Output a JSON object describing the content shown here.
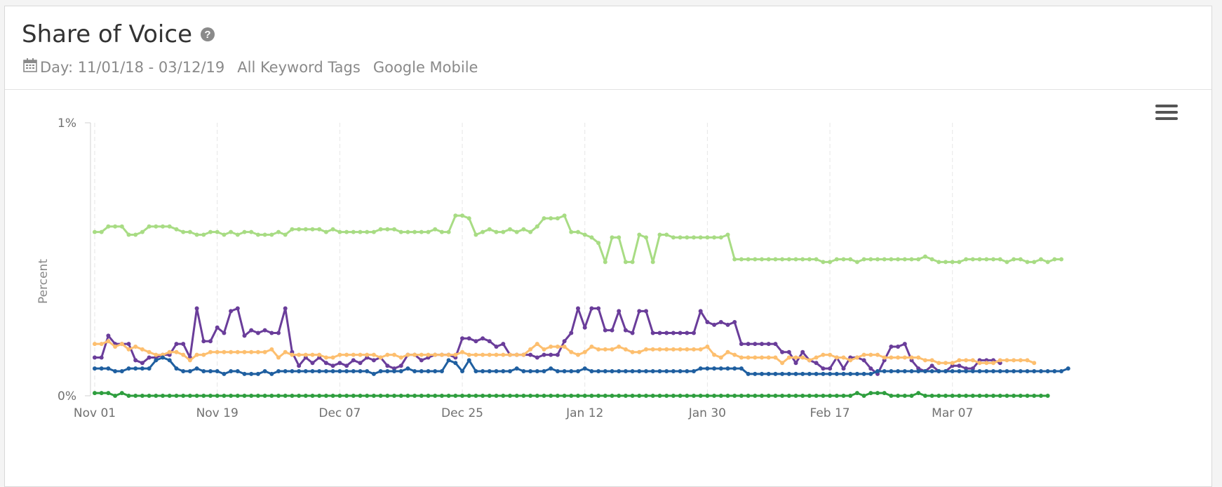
{
  "header": {
    "title": "Share of Voice",
    "help_icon": "question-circle-icon",
    "date_range": "Day: 11/01/18 - 03/12/19",
    "keyword_tags": "All Keyword Tags",
    "engine": "Google Mobile",
    "calendar_icon": "calendar-icon",
    "menu_icon": "hamburger-menu-icon"
  },
  "chart_data": {
    "type": "line",
    "ylabel": "Percent",
    "ylim": [
      0,
      1
    ],
    "y_ticks": [
      "0%",
      "1%"
    ],
    "x_ticks": [
      "Nov 01",
      "Nov 19",
      "Dec 07",
      "Dec 25",
      "Jan 12",
      "Jan 30",
      "Feb 17",
      "Mar 07"
    ],
    "x_start": "2018-11-01",
    "x_end": "2019-03-12",
    "grid": "vertical-dashed",
    "legend": "none",
    "series": [
      {
        "color": "#a8dc84",
        "values": [
          0.6,
          0.6,
          0.62,
          0.62,
          0.62,
          0.59,
          0.59,
          0.6,
          0.62,
          0.62,
          0.62,
          0.62,
          0.61,
          0.6,
          0.6,
          0.59,
          0.59,
          0.6,
          0.6,
          0.59,
          0.6,
          0.59,
          0.6,
          0.6,
          0.59,
          0.59,
          0.59,
          0.6,
          0.59,
          0.61,
          0.61,
          0.61,
          0.61,
          0.61,
          0.6,
          0.61,
          0.6,
          0.6,
          0.6,
          0.6,
          0.6,
          0.6,
          0.61,
          0.61,
          0.61,
          0.6,
          0.6,
          0.6,
          0.6,
          0.6,
          0.61,
          0.6,
          0.6,
          0.66,
          0.66,
          0.65,
          0.59,
          0.6,
          0.61,
          0.6,
          0.6,
          0.61,
          0.6,
          0.61,
          0.6,
          0.62,
          0.65,
          0.65,
          0.65,
          0.66,
          0.6,
          0.6,
          0.59,
          0.58,
          0.56,
          0.49,
          0.58,
          0.58,
          0.49,
          0.49,
          0.59,
          0.58,
          0.49,
          0.59,
          0.59,
          0.58,
          0.58,
          0.58,
          0.58,
          0.58,
          0.58,
          0.58,
          0.58,
          0.59,
          0.5,
          0.5,
          0.5,
          0.5,
          0.5,
          0.5,
          0.5,
          0.5,
          0.5,
          0.5,
          0.5,
          0.5,
          0.5,
          0.49,
          0.49,
          0.5,
          0.5,
          0.5,
          0.49,
          0.5,
          0.5,
          0.5,
          0.5,
          0.5,
          0.5,
          0.5,
          0.5,
          0.5,
          0.51,
          0.5,
          0.49,
          0.49,
          0.49,
          0.49,
          0.5,
          0.5,
          0.5,
          0.5,
          0.5,
          0.5,
          0.49,
          0.5,
          0.5,
          0.49,
          0.49,
          0.5,
          0.49,
          0.5,
          0.5
        ]
      },
      {
        "color": "#6a3d9a",
        "values": [
          0.14,
          0.14,
          0.22,
          0.19,
          0.19,
          0.19,
          0.13,
          0.12,
          0.14,
          0.14,
          0.15,
          0.15,
          0.19,
          0.19,
          0.14,
          0.32,
          0.2,
          0.2,
          0.25,
          0.23,
          0.31,
          0.32,
          0.22,
          0.24,
          0.23,
          0.24,
          0.23,
          0.23,
          0.32,
          0.16,
          0.11,
          0.14,
          0.12,
          0.14,
          0.12,
          0.11,
          0.12,
          0.11,
          0.13,
          0.12,
          0.14,
          0.13,
          0.14,
          0.11,
          0.1,
          0.11,
          0.15,
          0.15,
          0.13,
          0.14,
          0.15,
          0.15,
          0.15,
          0.14,
          0.21,
          0.21,
          0.2,
          0.21,
          0.2,
          0.18,
          0.19,
          0.15,
          0.15,
          0.15,
          0.15,
          0.14,
          0.15,
          0.15,
          0.15,
          0.2,
          0.23,
          0.32,
          0.25,
          0.32,
          0.32,
          0.24,
          0.24,
          0.31,
          0.24,
          0.23,
          0.31,
          0.31,
          0.23,
          0.23,
          0.23,
          0.23,
          0.23,
          0.23,
          0.23,
          0.31,
          0.27,
          0.26,
          0.27,
          0.26,
          0.27,
          0.19,
          0.19,
          0.19,
          0.19,
          0.19,
          0.19,
          0.16,
          0.16,
          0.12,
          0.16,
          0.13,
          0.12,
          0.1,
          0.1,
          0.14,
          0.1,
          0.14,
          0.14,
          0.13,
          0.1,
          0.08,
          0.13,
          0.18,
          0.18,
          0.19,
          0.13,
          0.1,
          0.09,
          0.11,
          0.09,
          0.09,
          0.11,
          0.11,
          0.1,
          0.1,
          0.13,
          0.13,
          0.13,
          0.12
        ]
      },
      {
        "color": "#fdbf6f",
        "values": [
          0.19,
          0.19,
          0.2,
          0.18,
          0.19,
          0.17,
          0.18,
          0.17,
          0.16,
          0.15,
          0.15,
          0.16,
          0.16,
          0.15,
          0.13,
          0.15,
          0.15,
          0.16,
          0.16,
          0.16,
          0.16,
          0.16,
          0.16,
          0.16,
          0.16,
          0.16,
          0.17,
          0.14,
          0.16,
          0.15,
          0.15,
          0.15,
          0.15,
          0.15,
          0.14,
          0.14,
          0.15,
          0.15,
          0.15,
          0.15,
          0.15,
          0.15,
          0.14,
          0.15,
          0.15,
          0.14,
          0.15,
          0.15,
          0.15,
          0.15,
          0.15,
          0.15,
          0.15,
          0.15,
          0.16,
          0.15,
          0.15,
          0.15,
          0.15,
          0.15,
          0.15,
          0.15,
          0.15,
          0.15,
          0.17,
          0.19,
          0.17,
          0.18,
          0.18,
          0.18,
          0.16,
          0.15,
          0.16,
          0.18,
          0.17,
          0.17,
          0.17,
          0.18,
          0.17,
          0.16,
          0.16,
          0.17,
          0.17,
          0.17,
          0.17,
          0.17,
          0.17,
          0.17,
          0.17,
          0.17,
          0.18,
          0.15,
          0.14,
          0.16,
          0.15,
          0.14,
          0.14,
          0.14,
          0.14,
          0.14,
          0.14,
          0.12,
          0.14,
          0.14,
          0.14,
          0.13,
          0.14,
          0.15,
          0.15,
          0.14,
          0.14,
          0.13,
          0.14,
          0.15,
          0.15,
          0.15,
          0.14,
          0.14,
          0.14,
          0.14,
          0.14,
          0.14,
          0.13,
          0.13,
          0.12,
          0.12,
          0.12,
          0.13,
          0.13,
          0.13,
          0.12,
          0.12,
          0.12,
          0.13,
          0.13,
          0.13,
          0.13,
          0.13,
          0.12
        ]
      },
      {
        "color": "#1f5fa0",
        "values": [
          0.1,
          0.1,
          0.1,
          0.09,
          0.09,
          0.1,
          0.1,
          0.1,
          0.1,
          0.13,
          0.14,
          0.13,
          0.1,
          0.09,
          0.09,
          0.1,
          0.09,
          0.09,
          0.09,
          0.08,
          0.09,
          0.09,
          0.08,
          0.08,
          0.08,
          0.09,
          0.08,
          0.09,
          0.09,
          0.09,
          0.09,
          0.09,
          0.09,
          0.09,
          0.09,
          0.09,
          0.09,
          0.09,
          0.09,
          0.09,
          0.09,
          0.08,
          0.09,
          0.09,
          0.09,
          0.09,
          0.1,
          0.09,
          0.09,
          0.09,
          0.09,
          0.09,
          0.13,
          0.12,
          0.09,
          0.13,
          0.09,
          0.09,
          0.09,
          0.09,
          0.09,
          0.09,
          0.1,
          0.09,
          0.09,
          0.09,
          0.09,
          0.1,
          0.09,
          0.09,
          0.09,
          0.09,
          0.1,
          0.09,
          0.09,
          0.09,
          0.09,
          0.09,
          0.09,
          0.09,
          0.09,
          0.09,
          0.09,
          0.09,
          0.09,
          0.09,
          0.09,
          0.09,
          0.09,
          0.1,
          0.1,
          0.1,
          0.1,
          0.1,
          0.1,
          0.1,
          0.08,
          0.08,
          0.08,
          0.08,
          0.08,
          0.08,
          0.08,
          0.08,
          0.08,
          0.08,
          0.08,
          0.08,
          0.08,
          0.08,
          0.08,
          0.08,
          0.08,
          0.08,
          0.08,
          0.09,
          0.09,
          0.09,
          0.09,
          0.09,
          0.09,
          0.09,
          0.09,
          0.09,
          0.09,
          0.09,
          0.09,
          0.09,
          0.09,
          0.09,
          0.09,
          0.09,
          0.09,
          0.09,
          0.09,
          0.09,
          0.09,
          0.09,
          0.09,
          0.09,
          0.09,
          0.09,
          0.09,
          0.1
        ]
      },
      {
        "color": "#2e9e3e",
        "values": [
          0.01,
          0.01,
          0.01,
          0.0,
          0.01,
          0.0,
          0.0,
          0.0,
          0.0,
          0.0,
          0.0,
          0.0,
          0.0,
          0.0,
          0.0,
          0.0,
          0.0,
          0.0,
          0.0,
          0.0,
          0.0,
          0.0,
          0.0,
          0.0,
          0.0,
          0.0,
          0.0,
          0.0,
          0.0,
          0.0,
          0.0,
          0.0,
          0.0,
          0.0,
          0.0,
          0.0,
          0.0,
          0.0,
          0.0,
          0.0,
          0.0,
          0.0,
          0.0,
          0.0,
          0.0,
          0.0,
          0.0,
          0.0,
          0.0,
          0.0,
          0.0,
          0.0,
          0.0,
          0.0,
          0.0,
          0.0,
          0.0,
          0.0,
          0.0,
          0.0,
          0.0,
          0.0,
          0.0,
          0.0,
          0.0,
          0.0,
          0.0,
          0.0,
          0.0,
          0.0,
          0.0,
          0.0,
          0.0,
          0.0,
          0.0,
          0.0,
          0.0,
          0.0,
          0.0,
          0.0,
          0.0,
          0.0,
          0.0,
          0.0,
          0.0,
          0.0,
          0.0,
          0.0,
          0.0,
          0.0,
          0.0,
          0.0,
          0.0,
          0.0,
          0.0,
          0.0,
          0.0,
          0.0,
          0.0,
          0.0,
          0.0,
          0.0,
          0.0,
          0.0,
          0.0,
          0.0,
          0.0,
          0.0,
          0.0,
          0.0,
          0.0,
          0.0,
          0.01,
          0.0,
          0.01,
          0.01,
          0.01,
          0.0,
          0.0,
          0.0,
          0.0,
          0.01,
          0.0,
          0.0,
          0.0,
          0.0,
          0.0,
          0.0,
          0.0,
          0.0,
          0.0,
          0.0,
          0.0,
          0.0,
          0.0,
          0.0,
          0.0,
          0.0,
          0.0,
          0.0,
          0.0
        ]
      }
    ]
  }
}
